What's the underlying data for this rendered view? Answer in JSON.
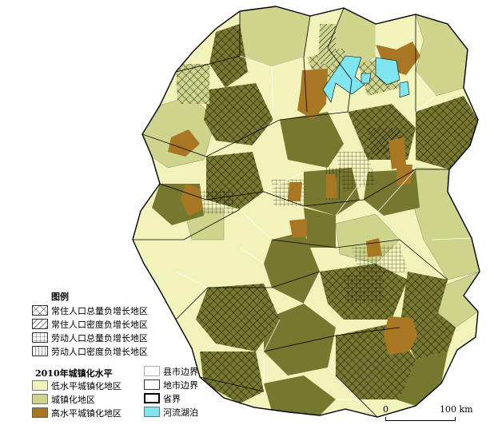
{
  "colors": {
    "low": "#f2f3bb",
    "mid": "#cfd48c",
    "high": "#a77724",
    "dark": "#77782f",
    "lake": "#7fe6f0",
    "line": "#000000"
  },
  "legend": {
    "title": "图例",
    "hatch_items": [
      {
        "label": "常住人口总量负增长地区",
        "pattern": "crosshatch-icon"
      },
      {
        "label": "常住人口密度负增长地区",
        "pattern": "diagonal-hatch-icon"
      },
      {
        "label": "劳动人口总量负增长地区",
        "pattern": "grid-hatch-icon"
      },
      {
        "label": "劳动人口密度负增长地区",
        "pattern": "vertical-hatch-icon"
      }
    ],
    "level_title": "2010年城镇化水平",
    "level_items": [
      {
        "label": "低水平城镇化地区",
        "color": "#f2f3bb"
      },
      {
        "label": "城镇化地区",
        "color": "#cfd48c"
      },
      {
        "label": "高水平城镇化地区",
        "color": "#a77724"
      }
    ],
    "boundary_items": [
      {
        "label": "县市边界",
        "style": "county-line-icon"
      },
      {
        "label": "地市边界",
        "style": "prefecture-line-icon"
      },
      {
        "label": "省界",
        "style": "province-line-icon"
      },
      {
        "label": "河流湖泊",
        "style": "lake-swatch-icon",
        "color": "#7fe6f0"
      }
    ]
  },
  "scale": {
    "start_label": "0",
    "end_label": "100 km"
  }
}
